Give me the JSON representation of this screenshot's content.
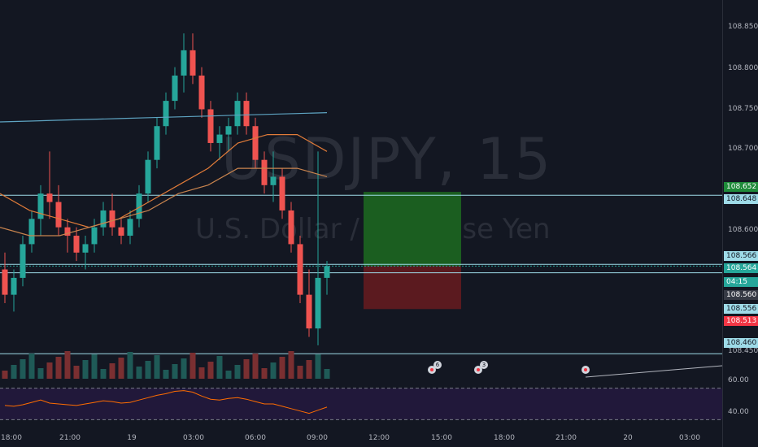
{
  "watermark": {
    "symbol": "USDJPY, 15",
    "description": "U.S. Dollar / Japanese Yen"
  },
  "price_axis": {
    "ticks": [
      "108.850",
      "108.800",
      "108.750",
      "108.700",
      "108.600",
      "108.450"
    ],
    "labels": [
      {
        "text": "108.652",
        "color": "#1f8b3a",
        "price": 108.652
      },
      {
        "text": "108.648",
        "color": "#9edbe8",
        "price": 108.648
      },
      {
        "text": "108.566",
        "color": "#9edbe8",
        "price": 108.566
      },
      {
        "text": "108.564",
        "color": "#26a69a",
        "price": 108.564
      },
      {
        "text": "04:15",
        "color": "#26a69a",
        "price": 108.5625
      },
      {
        "text": "108.560",
        "color": "#363a45",
        "price": 108.56
      },
      {
        "text": "108.556",
        "color": "#9edbe8",
        "price": 108.556
      },
      {
        "text": "108.513",
        "color": "#f23645",
        "price": 108.513
      },
      {
        "text": "108.460",
        "color": "#9edbe8",
        "price": 108.46
      }
    ]
  },
  "rsi": {
    "ticks": [
      "60.00",
      "40.00"
    ],
    "upper": 70,
    "lower": 30,
    "color": "#ff6d00",
    "fill": "#21183a"
  },
  "time_axis": {
    "labels": [
      "18:00",
      "21:00",
      "19",
      "03:00",
      "06:00",
      "09:00",
      "12:00",
      "15:00",
      "18:00",
      "21:00",
      "20",
      "03:00"
    ]
  },
  "events": [
    {
      "badge": "6"
    },
    {
      "badge": "3"
    },
    {
      "badge": ""
    }
  ],
  "colors": {
    "up": "#26a69a",
    "down": "#ef5350",
    "volume_up": "#1f5a57",
    "volume_down": "#7a2f31",
    "ma_long": "#5ea4c2",
    "ma_short": "#e07b39",
    "ma_mid": "#c9844e",
    "hline": "#9edbe8",
    "target": "#1b5e20",
    "stop": "#5b1a1f"
  },
  "chart_data": {
    "type": "candlestick",
    "symbol": "USDJPY, 15",
    "ylim": [
      108.44,
      108.87
    ],
    "x_categories": [
      "18:00",
      "21:00",
      "19",
      "03:00",
      "06:00",
      "09:00"
    ],
    "candles": [
      [
        108.56,
        108.58,
        108.52,
        108.53
      ],
      [
        108.53,
        108.56,
        108.51,
        108.55
      ],
      [
        108.55,
        108.6,
        108.54,
        108.59
      ],
      [
        108.59,
        108.63,
        108.58,
        108.62
      ],
      [
        108.62,
        108.66,
        108.6,
        108.65
      ],
      [
        108.65,
        108.7,
        108.62,
        108.64
      ],
      [
        108.64,
        108.66,
        108.6,
        108.61
      ],
      [
        108.61,
        108.62,
        108.58,
        108.6
      ],
      [
        108.6,
        108.61,
        108.57,
        108.58
      ],
      [
        108.58,
        108.6,
        108.56,
        108.59
      ],
      [
        108.59,
        108.62,
        108.58,
        108.61
      ],
      [
        108.61,
        108.64,
        108.6,
        108.63
      ],
      [
        108.63,
        108.65,
        108.6,
        108.61
      ],
      [
        108.61,
        108.62,
        108.59,
        108.6
      ],
      [
        108.6,
        108.63,
        108.59,
        108.62
      ],
      [
        108.62,
        108.66,
        108.61,
        108.65
      ],
      [
        108.65,
        108.7,
        108.64,
        108.69
      ],
      [
        108.69,
        108.74,
        108.68,
        108.73
      ],
      [
        108.73,
        108.77,
        108.72,
        108.76
      ],
      [
        108.76,
        108.8,
        108.75,
        108.79
      ],
      [
        108.79,
        108.84,
        108.77,
        108.82
      ],
      [
        108.82,
        108.84,
        108.78,
        108.79
      ],
      [
        108.79,
        108.8,
        108.74,
        108.75
      ],
      [
        108.75,
        108.76,
        108.7,
        108.71
      ],
      [
        108.71,
        108.73,
        108.69,
        108.72
      ],
      [
        108.72,
        108.74,
        108.7,
        108.73
      ],
      [
        108.73,
        108.77,
        108.72,
        108.76
      ],
      [
        108.76,
        108.77,
        108.72,
        108.73
      ],
      [
        108.73,
        108.74,
        108.68,
        108.69
      ],
      [
        108.69,
        108.7,
        108.65,
        108.66
      ],
      [
        108.66,
        108.7,
        108.64,
        108.67
      ],
      [
        108.67,
        108.68,
        108.62,
        108.63
      ],
      [
        108.63,
        108.64,
        108.58,
        108.59
      ],
      [
        108.59,
        108.6,
        108.52,
        108.53
      ],
      [
        108.53,
        108.56,
        108.48,
        108.49
      ],
      [
        108.49,
        108.7,
        108.47,
        108.55
      ],
      [
        108.55,
        108.57,
        108.53,
        108.564
      ]
    ],
    "moving_averages": [
      {
        "values": [
          108.735,
          108.736,
          108.737,
          108.738,
          108.739,
          108.74,
          108.741,
          108.742,
          108.743,
          108.744,
          108.745,
          108.746
        ]
      },
      {
        "values": [
          108.65,
          108.63,
          108.62,
          108.61,
          108.62,
          108.64,
          108.66,
          108.68,
          108.71,
          108.72,
          108.72,
          108.7
        ]
      },
      {
        "values": [
          108.61,
          108.6,
          108.6,
          108.61,
          108.62,
          108.63,
          108.65,
          108.66,
          108.68,
          108.68,
          108.68,
          108.67
        ]
      }
    ],
    "rsi_values": [
      48,
      47,
      49,
      52,
      55,
      51,
      50,
      49,
      48,
      50,
      52,
      54,
      53,
      51,
      52,
      55,
      58,
      61,
      63,
      66,
      67,
      65,
      60,
      56,
      55,
      57,
      58,
      56,
      53,
      50,
      50,
      47,
      44,
      41,
      38,
      42,
      46
    ],
    "position": {
      "entry": 108.564,
      "target": 108.652,
      "stop": 108.513
    },
    "horizontal_lines": [
      108.648,
      108.566,
      108.556,
      108.46
    ]
  }
}
